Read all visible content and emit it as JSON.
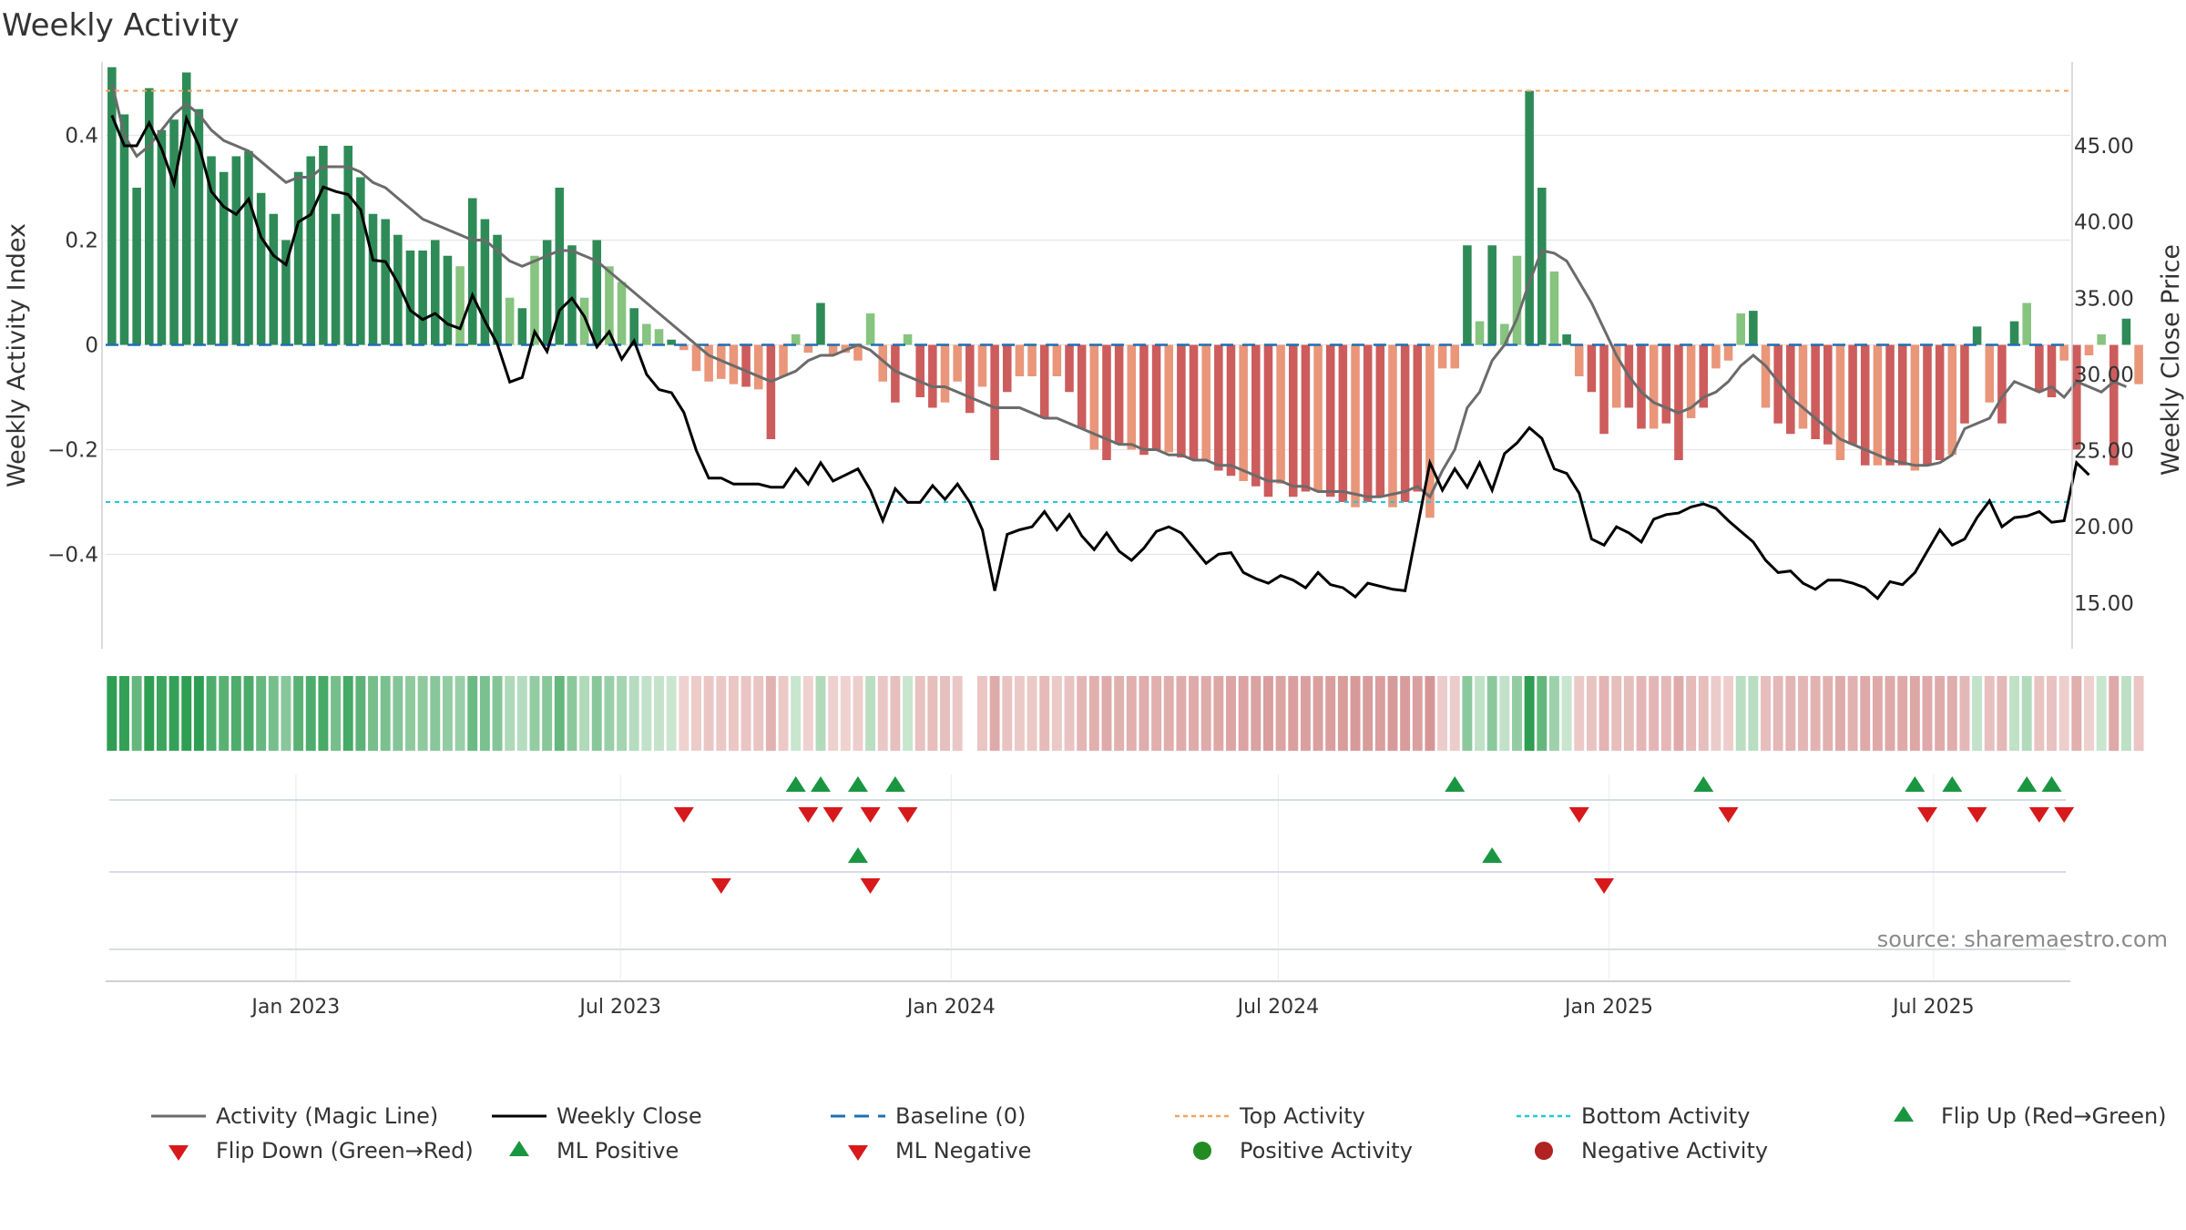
{
  "chart_data": {
    "type": "bar",
    "title": "Weekly Activity",
    "ylabel_left": "Weekly Activity Index",
    "ylabel_right": "Weekly Close Price",
    "source": "source: sharemaestro.com",
    "y_left": {
      "range": [
        -0.58,
        0.54
      ],
      "ticks": [
        0.4,
        0.2,
        0,
        -0.2,
        -0.4
      ],
      "tick_labels": [
        "0.4",
        "0.2",
        "0",
        "−0.2",
        "−0.4"
      ]
    },
    "y_right": {
      "range": [
        12.0,
        50.5
      ],
      "ticks": [
        45,
        40,
        35,
        30,
        25,
        20,
        15
      ],
      "tick_labels": [
        "45.00",
        "40.00",
        "35.00",
        "30.00",
        "25.00",
        "20.00",
        "15.00"
      ]
    },
    "x_range": [
      0,
      158
    ],
    "x_ticks": [
      {
        "pos": 15.3,
        "label": "Jan 2023"
      },
      {
        "pos": 41.4,
        "label": "Jul 2023"
      },
      {
        "pos": 68.0,
        "label": "Jan 2024"
      },
      {
        "pos": 94.3,
        "label": "Jul 2024"
      },
      {
        "pos": 120.9,
        "label": "Jan 2025"
      },
      {
        "pos": 147.0,
        "label": "Jul 2025"
      }
    ],
    "top_activity": 0.485,
    "bottom_activity": -0.3,
    "activity": [
      0.53,
      0.44,
      0.3,
      0.49,
      0.41,
      0.43,
      0.52,
      0.45,
      0.36,
      0.33,
      0.36,
      0.37,
      0.29,
      0.25,
      0.2,
      0.33,
      0.36,
      0.38,
      0.25,
      0.38,
      0.32,
      0.25,
      0.24,
      0.21,
      0.18,
      0.18,
      0.2,
      0.17,
      0.15,
      0.28,
      0.24,
      0.21,
      0.09,
      0.07,
      0.17,
      0.2,
      0.3,
      0.19,
      0.09,
      0.2,
      0.15,
      0.12,
      0.07,
      0.04,
      0.03,
      0.01,
      -0.01,
      -0.05,
      -0.07,
      -0.065,
      -0.075,
      -0.08,
      -0.085,
      -0.18,
      -0.06,
      0.02,
      -0.015,
      0.08,
      -0.02,
      -0.015,
      -0.03,
      0.06,
      -0.07,
      -0.11,
      0.02,
      -0.1,
      -0.12,
      -0.11,
      -0.07,
      -0.13,
      -0.08,
      -0.22,
      -0.09,
      -0.06,
      -0.06,
      -0.14,
      -0.06,
      -0.09,
      -0.16,
      -0.2,
      -0.22,
      -0.19,
      -0.2,
      -0.21,
      -0.2,
      -0.205,
      -0.215,
      -0.22,
      -0.22,
      -0.24,
      -0.25,
      -0.26,
      -0.27,
      -0.29,
      -0.265,
      -0.29,
      -0.28,
      -0.28,
      -0.29,
      -0.3,
      -0.31,
      -0.3,
      -0.29,
      -0.31,
      -0.3,
      -0.28,
      -0.33,
      -0.045,
      -0.045,
      0.19,
      0.045,
      0.19,
      0.04,
      0.17,
      0.485,
      0.3,
      0.14,
      0.02,
      -0.06,
      -0.09,
      -0.17,
      -0.12,
      -0.12,
      -0.16,
      -0.16,
      -0.15,
      -0.22,
      -0.14,
      -0.12,
      -0.045,
      -0.03,
      0.06,
      0.065,
      -0.12,
      -0.15,
      -0.17,
      -0.16,
      -0.18,
      -0.19,
      -0.22,
      -0.19,
      -0.23,
      -0.23,
      -0.23,
      -0.23,
      -0.24,
      -0.23,
      -0.22,
      -0.21,
      -0.15,
      0.035,
      -0.11,
      -0.15,
      0.045,
      0.08,
      -0.09,
      -0.1,
      -0.03,
      -0.2,
      -0.02,
      0.02,
      -0.23,
      0.05,
      -0.075
    ],
    "close": [
      47.0,
      45.0,
      45.0,
      46.5,
      44.8,
      42.5,
      46.8,
      45.0,
      42.0,
      41.0,
      40.5,
      41.5,
      39.0,
      37.8,
      37.2,
      40.0,
      40.5,
      42.3,
      42.0,
      41.8,
      40.8,
      37.5,
      37.4,
      36.0,
      34.2,
      33.6,
      34.0,
      33.3,
      33.0,
      35.2,
      33.5,
      32.0,
      29.5,
      29.8,
      32.8,
      31.5,
      34.2,
      35.0,
      33.8,
      31.8,
      32.8,
      31.0,
      32.2,
      30.0,
      29.0,
      28.8,
      27.5,
      25.0,
      23.2,
      23.2,
      22.8,
      22.8,
      22.8,
      22.6,
      22.6,
      23.8,
      22.8,
      24.2,
      23.0,
      23.4,
      23.8,
      22.4,
      20.4,
      22.5,
      21.6,
      21.6,
      22.7,
      21.8,
      22.8,
      21.6,
      19.8,
      15.8,
      19.5,
      19.8,
      20.0,
      21.0,
      19.8,
      20.8,
      19.4,
      18.5,
      19.6,
      18.4,
      17.8,
      18.6,
      19.7,
      20.0,
      19.6,
      18.6,
      17.6,
      18.2,
      18.3,
      17.0,
      16.6,
      16.3,
      16.8,
      16.5,
      16.0,
      17.0,
      16.2,
      16.0,
      15.4,
      16.3,
      16.1,
      15.9,
      15.8,
      20.0,
      24.2,
      22.4,
      23.8,
      22.6,
      24.2,
      22.4,
      24.8,
      25.5,
      26.5,
      25.8,
      23.8,
      23.5,
      22.2,
      19.2,
      18.8,
      20.0,
      19.6,
      19.0,
      20.5,
      20.8,
      20.9,
      21.3,
      21.5,
      21.2,
      20.4,
      19.7,
      19.0,
      17.8,
      17.0,
      17.1,
      16.3,
      15.9,
      16.5,
      16.5,
      16.3,
      16.0,
      15.3,
      16.4,
      16.2,
      17.0,
      18.4,
      19.8,
      18.8,
      19.2,
      20.6,
      21.7,
      20.0,
      20.6,
      20.7,
      21.0,
      20.3,
      20.4,
      24.2,
      23.4
    ],
    "magic": [
      0.5,
      0.4,
      0.36,
      0.38,
      0.41,
      0.44,
      0.46,
      0.44,
      0.41,
      0.39,
      0.38,
      0.37,
      0.35,
      0.33,
      0.31,
      0.32,
      0.32,
      0.34,
      0.34,
      0.34,
      0.33,
      0.31,
      0.3,
      0.28,
      0.26,
      0.24,
      0.23,
      0.22,
      0.21,
      0.2,
      0.2,
      0.18,
      0.16,
      0.15,
      0.16,
      0.17,
      0.18,
      0.18,
      0.17,
      0.16,
      0.14,
      0.12,
      0.1,
      0.08,
      0.06,
      0.04,
      0.02,
      0.0,
      -0.02,
      -0.03,
      -0.04,
      -0.05,
      -0.06,
      -0.07,
      -0.06,
      -0.05,
      -0.03,
      -0.02,
      -0.02,
      -0.01,
      0.0,
      -0.01,
      -0.03,
      -0.05,
      -0.06,
      -0.07,
      -0.08,
      -0.08,
      -0.09,
      -0.1,
      -0.11,
      -0.12,
      -0.12,
      -0.12,
      -0.13,
      -0.14,
      -0.14,
      -0.15,
      -0.16,
      -0.17,
      -0.18,
      -0.19,
      -0.19,
      -0.2,
      -0.2,
      -0.21,
      -0.21,
      -0.22,
      -0.22,
      -0.23,
      -0.23,
      -0.24,
      -0.25,
      -0.26,
      -0.26,
      -0.27,
      -0.27,
      -0.28,
      -0.28,
      -0.28,
      -0.285,
      -0.29,
      -0.29,
      -0.285,
      -0.28,
      -0.27,
      -0.29,
      -0.24,
      -0.2,
      -0.12,
      -0.09,
      -0.03,
      0.0,
      0.05,
      0.12,
      0.18,
      0.175,
      0.16,
      0.12,
      0.08,
      0.03,
      -0.02,
      -0.06,
      -0.09,
      -0.11,
      -0.12,
      -0.13,
      -0.12,
      -0.1,
      -0.09,
      -0.07,
      -0.04,
      -0.02,
      -0.04,
      -0.07,
      -0.1,
      -0.12,
      -0.14,
      -0.16,
      -0.18,
      -0.19,
      -0.2,
      -0.21,
      -0.22,
      -0.225,
      -0.23,
      -0.23,
      -0.225,
      -0.21,
      -0.16,
      -0.15,
      -0.14,
      -0.1,
      -0.07,
      -0.08,
      -0.09,
      -0.08,
      -0.1,
      -0.07,
      -0.08,
      -0.09,
      -0.07,
      -0.08
    ],
    "flips_up": [
      55.5,
      57.5,
      60.5,
      63.5,
      108.5,
      128.5,
      145.5,
      148.5,
      154.5,
      156.5
    ],
    "flips_down": [
      46.5,
      56.5,
      58.5,
      61.5,
      64.5,
      118.5,
      130.5,
      146.5,
      150.5,
      155.5,
      157.5
    ],
    "ml_positive": [
      60.5,
      111.5
    ],
    "ml_negative": [
      49.5,
      61.5,
      120.5
    ],
    "legend": [
      {
        "label": "Activity (Magic Line)",
        "swatch": "line-gray"
      },
      {
        "label": "Weekly Close",
        "swatch": "line-black"
      },
      {
        "label": "Baseline (0)",
        "swatch": "dash-blue"
      },
      {
        "label": "Top Activity",
        "swatch": "dot-orange"
      },
      {
        "label": "Bottom Activity",
        "swatch": "dot-cyan"
      },
      {
        "label": "Flip Up (Red→Green)",
        "swatch": "tri-up-green"
      },
      {
        "label": "Flip Down (Green→Red)",
        "swatch": "tri-down-red"
      },
      {
        "label": "ML Positive",
        "swatch": "tri-up-green"
      },
      {
        "label": "ML Negative",
        "swatch": "tri-down-red"
      },
      {
        "label": "Positive Activity",
        "swatch": "circle-green"
      },
      {
        "label": "Negative Activity",
        "swatch": "circle-red"
      }
    ]
  },
  "colors": {
    "pos_dark": "#2e8b57",
    "pos_light": "#86c47f",
    "neg_dark": "#cd5c5c",
    "neg_light": "#e9967a",
    "magic_line": "#6b6b6b",
    "close_line": "#000000",
    "baseline": "#1f6fb2",
    "top_line": "#f4a460",
    "bottom_line": "#20c9d6",
    "marker_green": "#1a9641",
    "marker_red": "#d7191c",
    "legend_green_dot": "#228b22",
    "legend_red_dot": "#b22222",
    "grid": "#e6e6e6",
    "axis": "#cfcfcf"
  }
}
